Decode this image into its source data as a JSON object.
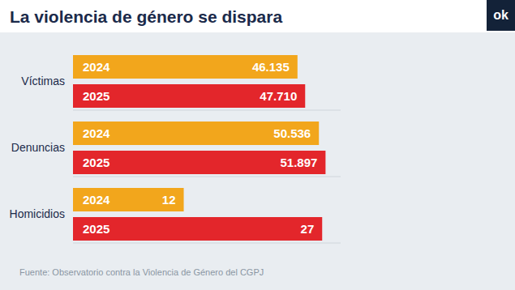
{
  "title": "La violencia de género se dispara",
  "source": "Fuente: Observatorio contra la Violencia de Género del CGPJ",
  "logo": "ok",
  "chart_data": [
    {
      "type": "bar",
      "title": "Víctimas",
      "orientation": "horizontal",
      "categories": [
        "2024",
        "2025"
      ],
      "values": [
        46135,
        47710
      ],
      "value_labels": [
        "46.135",
        "47.710"
      ],
      "colors": [
        "#f2a61c",
        "#e3262b"
      ],
      "xlim": [
        0,
        55000
      ],
      "xticks": [
        0,
        55000
      ],
      "tick_labels": false,
      "grid": false,
      "data_labels": true
    },
    {
      "type": "bar",
      "title": "Denuncias",
      "orientation": "horizontal",
      "categories": [
        "2024",
        "2025"
      ],
      "values": [
        50536,
        51897
      ],
      "value_labels": [
        "50.536",
        "51.897"
      ],
      "colors": [
        "#f2a61c",
        "#e3262b"
      ],
      "xlim": [
        0,
        55000
      ],
      "xticks": [
        0,
        55000
      ],
      "tick_labels": false,
      "grid": false,
      "data_labels": true
    },
    {
      "type": "bar",
      "title": "Homicidios",
      "orientation": "horizontal",
      "categories": [
        "2024",
        "2025"
      ],
      "values": [
        12,
        27
      ],
      "colors": [
        "#f2a61c",
        "#e3262b"
      ],
      "xlim": [
        0,
        29
      ],
      "xticks": [
        0,
        29
      ],
      "tick_labels": false,
      "grid": false,
      "data_labels": true
    }
  ]
}
